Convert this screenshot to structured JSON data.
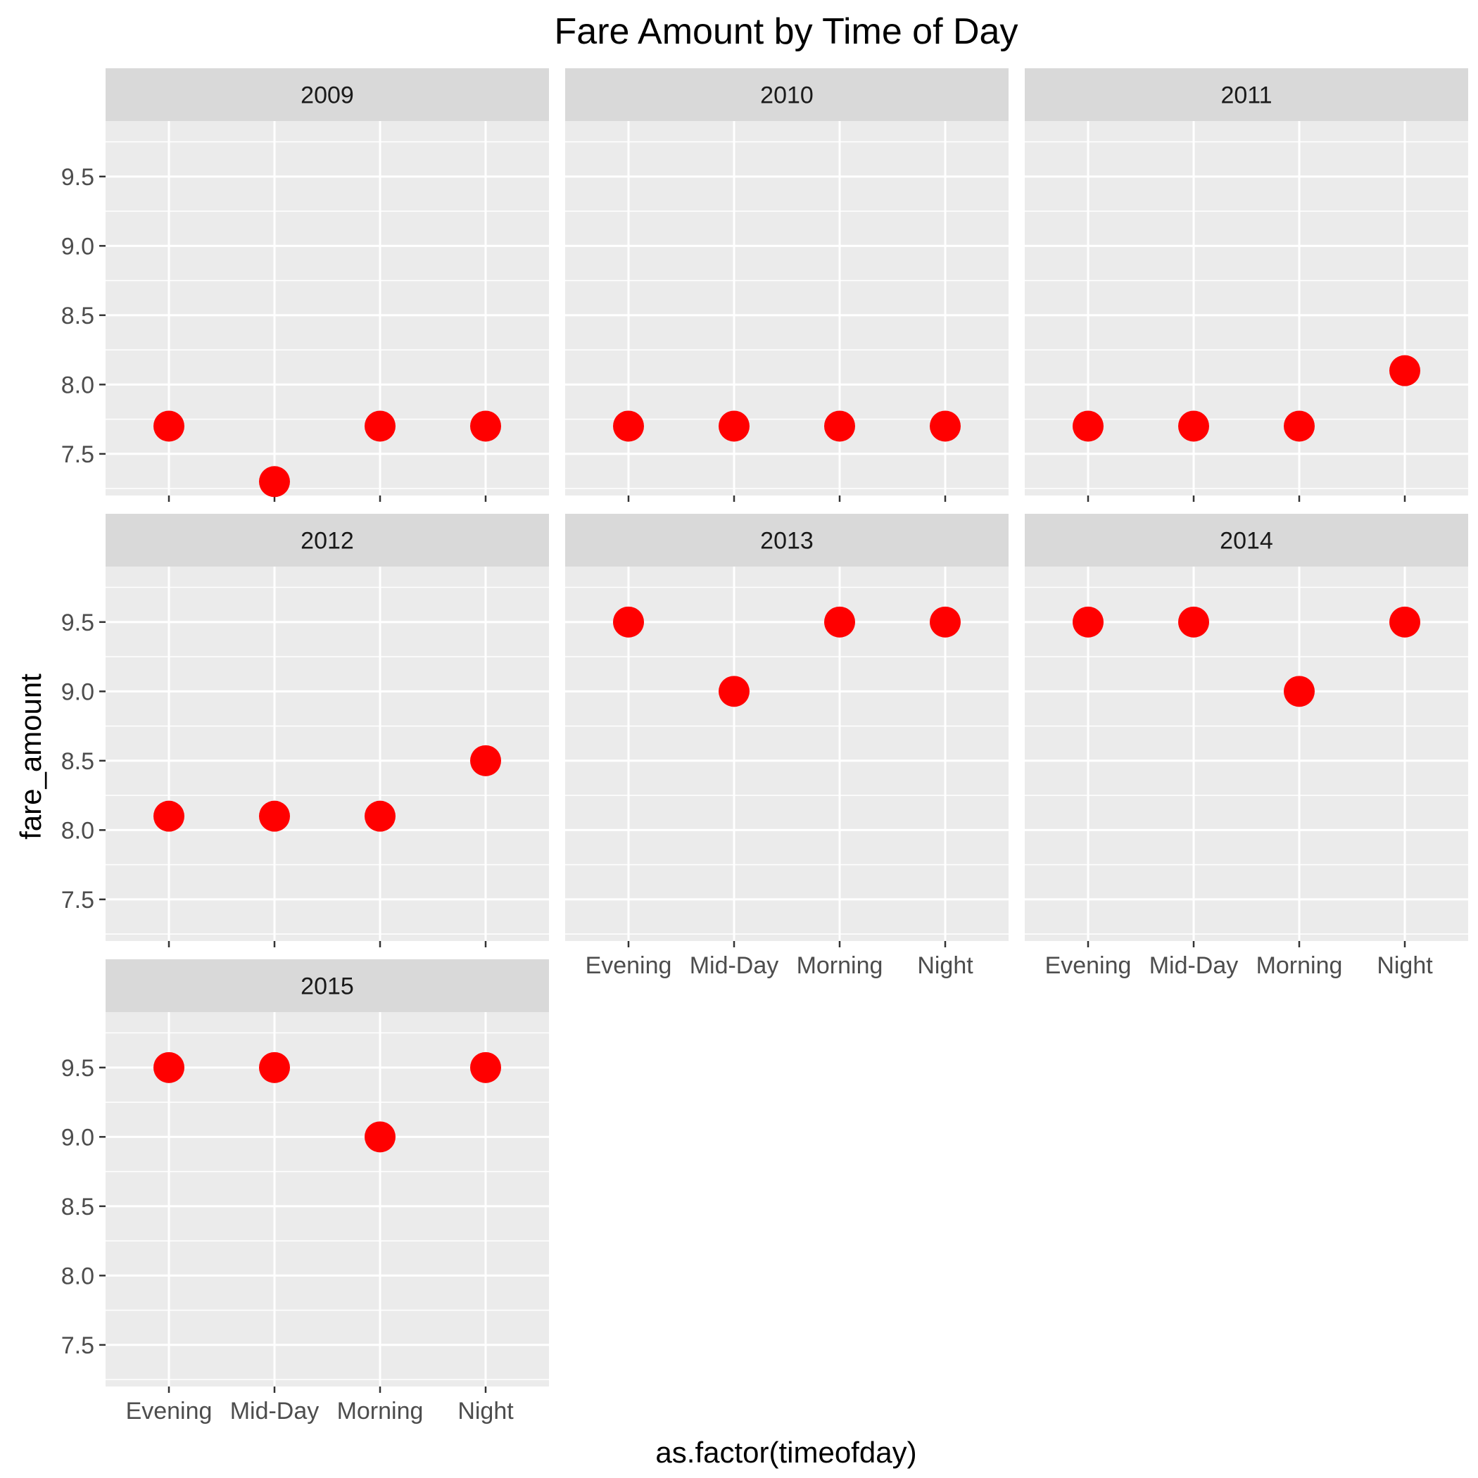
{
  "chart_data": {
    "type": "scatter",
    "title": "Fare Amount by Time of Day",
    "xlabel": "as.factor(timeofday)",
    "ylabel": "fare_amount",
    "categories": [
      "Evening",
      "Mid-Day",
      "Morning",
      "Night"
    ],
    "y_ticks": [
      "7.5",
      "8.0",
      "8.5",
      "9.0",
      "9.5"
    ],
    "ylim": [
      7.2,
      9.9
    ],
    "grid": true,
    "point_color": "#ff0000",
    "panel_background": "#ebebeb",
    "strip_background": "#d9d9d9",
    "facets": [
      {
        "label": "2009",
        "values": [
          7.7,
          7.3,
          7.7,
          7.7
        ]
      },
      {
        "label": "2010",
        "values": [
          7.7,
          7.7,
          7.7,
          7.7
        ]
      },
      {
        "label": "2011",
        "values": [
          7.7,
          7.7,
          7.7,
          8.1
        ]
      },
      {
        "label": "2012",
        "values": [
          8.1,
          8.1,
          8.1,
          8.5
        ]
      },
      {
        "label": "2013",
        "values": [
          9.5,
          9.0,
          9.5,
          9.5
        ]
      },
      {
        "label": "2014",
        "values": [
          9.5,
          9.5,
          9.0,
          9.5
        ]
      },
      {
        "label": "2015",
        "values": [
          9.5,
          9.5,
          9.0,
          9.5
        ]
      }
    ]
  }
}
